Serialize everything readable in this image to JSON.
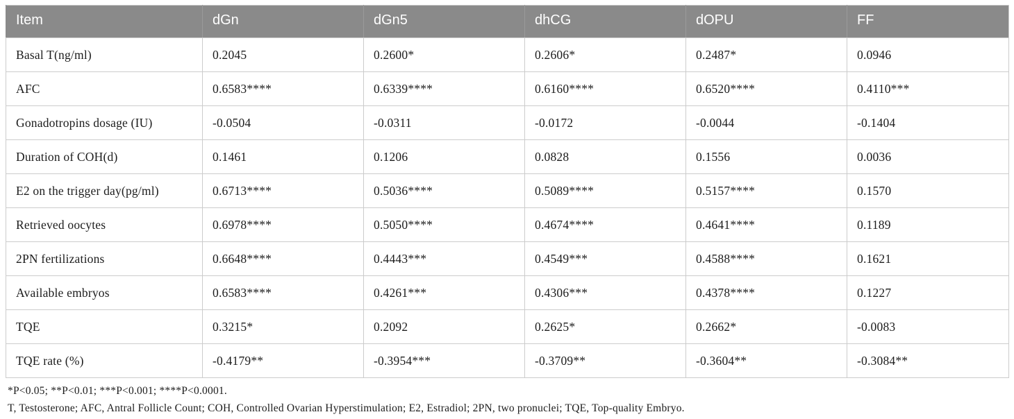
{
  "table": {
    "columns": [
      "Item",
      "dGn",
      "dGn5",
      "dhCG",
      "dOPU",
      "FF"
    ],
    "rows": [
      {
        "item": "Basal T(ng/ml)",
        "values": [
          "0.2045",
          "0.2600*",
          "0.2606*",
          "0.2487*",
          "0.0946"
        ]
      },
      {
        "item": "AFC",
        "values": [
          "0.6583****",
          "0.6339****",
          "0.6160****",
          "0.6520****",
          "0.4110***"
        ]
      },
      {
        "item": "Gonadotropins dosage (IU)",
        "values": [
          "-0.0504",
          "-0.0311",
          "-0.0172",
          "-0.0044",
          "-0.1404"
        ]
      },
      {
        "item": "Duration of COH(d)",
        "values": [
          "0.1461",
          "0.1206",
          "0.0828",
          "0.1556",
          "0.0036"
        ]
      },
      {
        "item": "E2 on the trigger day(pg/ml)",
        "values": [
          "0.6713****",
          "0.5036****",
          "0.5089****",
          "0.5157****",
          "0.1570"
        ]
      },
      {
        "item": "Retrieved oocytes",
        "values": [
          "0.6978****",
          "0.5050****",
          "0.4674****",
          "0.4641****",
          "0.1189"
        ]
      },
      {
        "item": "2PN fertilizations",
        "values": [
          "0.6648****",
          "0.4443***",
          "0.4549***",
          "0.4588****",
          "0.1621"
        ]
      },
      {
        "item": "Available embryos",
        "values": [
          "0.6583****",
          "0.4261***",
          "0.4306***",
          "0.4378****",
          "0.1227"
        ]
      },
      {
        "item": "TQE",
        "values": [
          "0.3215*",
          "0.2092",
          "0.2625*",
          "0.2662*",
          "-0.0083"
        ]
      },
      {
        "item": "TQE rate (%)",
        "values": [
          "-0.4179**",
          "-0.3954***",
          "-0.3709**",
          "-0.3604**",
          "-0.3084**"
        ]
      }
    ]
  },
  "footnotes": [
    "*P<0.05; **P<0.01; ***P<0.001; ****P<0.0001.",
    "T, Testosterone; AFC, Antral Follicle Count; COH, Controlled Ovarian Hyperstimulation; E2, Estradiol; 2PN, two pronuclei; TQE, Top-quality Embryo."
  ],
  "colors": {
    "header_bg": "#8a8a8a",
    "header_text": "#ffffff",
    "border": "#cccccc",
    "body_text": "#1c1c1c"
  }
}
